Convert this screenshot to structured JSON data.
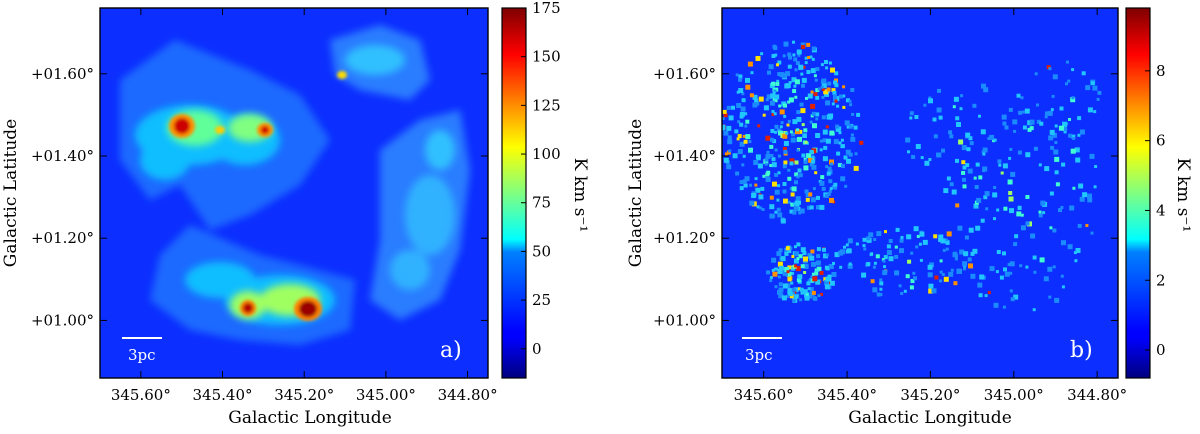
{
  "chart_data": [
    {
      "type": "heatmap",
      "panel_label": "a)",
      "xlabel": "Galactic Longitude",
      "ylabel": "Galactic Latitude",
      "xlim": [
        345.7,
        344.75
      ],
      "ylim": [
        0.86,
        1.76
      ],
      "xticks": [
        345.6,
        345.4,
        345.2,
        345.0,
        344.8
      ],
      "xtick_labels": [
        "345.60°",
        "345.40°",
        "345.20°",
        "345.00°",
        "344.80°"
      ],
      "yticks": [
        1.0,
        1.2,
        1.4,
        1.6
      ],
      "ytick_labels": [
        "+01.00°",
        "+01.20°",
        "+01.40°",
        "+01.60°"
      ],
      "scalebar_label": "3pc",
      "colorbar": {
        "label": "K km s⁻¹",
        "range": [
          -15,
          175
        ],
        "ticks": [
          0,
          25,
          50,
          75,
          100,
          125,
          150,
          175
        ],
        "tick_labels": [
          "0",
          "25",
          "50",
          "75",
          "100",
          "125",
          "150",
          "175"
        ]
      }
    },
    {
      "type": "heatmap",
      "panel_label": "b)",
      "xlabel": "Galactic Longitude",
      "ylabel": "Galactic Latitude",
      "xlim": [
        345.7,
        344.75
      ],
      "ylim": [
        0.86,
        1.76
      ],
      "xticks": [
        345.6,
        345.4,
        345.2,
        345.0,
        344.8
      ],
      "xtick_labels": [
        "345.60°",
        "345.40°",
        "345.20°",
        "345.00°",
        "344.80°"
      ],
      "yticks": [
        1.0,
        1.2,
        1.4,
        1.6
      ],
      "ytick_labels": [
        "+01.00°",
        "+01.20°",
        "+01.40°",
        "+01.60°"
      ],
      "scalebar_label": "3pc",
      "colorbar": {
        "label": "K km s⁻¹",
        "range": [
          -0.8,
          9.8
        ],
        "ticks": [
          0,
          2,
          4,
          6,
          8
        ],
        "tick_labels": [
          "0",
          "2",
          "4",
          "6",
          "8"
        ]
      }
    }
  ]
}
